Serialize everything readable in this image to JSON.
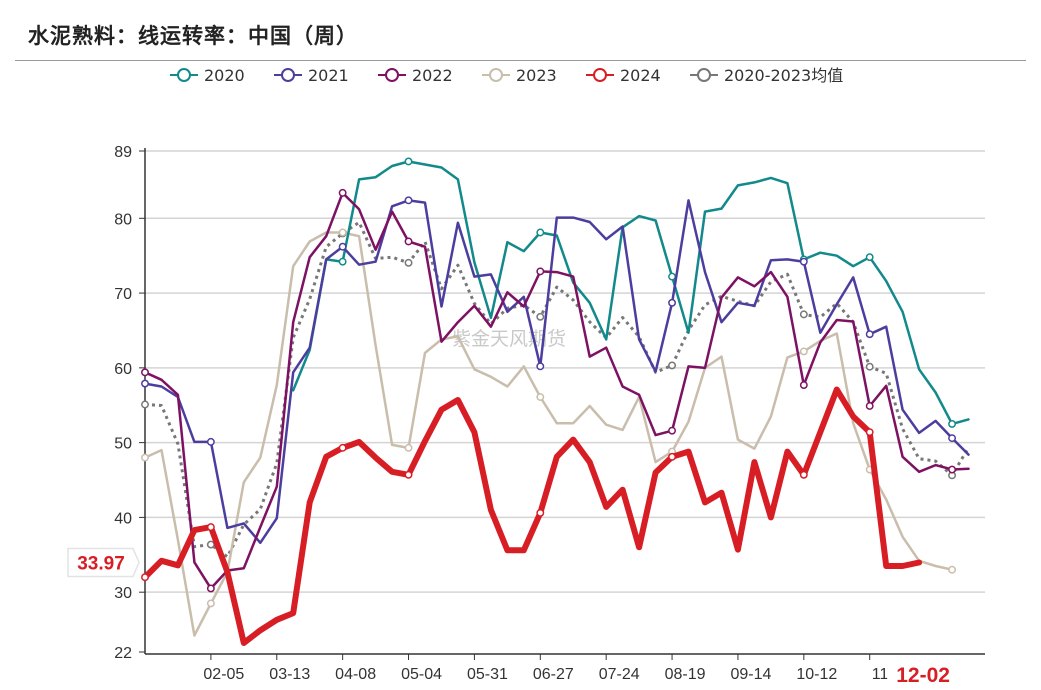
{
  "title": "水泥熟料：线运转率：中国（周）",
  "watermark": "紫金天风期货",
  "chart_data": {
    "type": "line",
    "title": "水泥熟料：线运转率：中国（周）",
    "xlabel": "",
    "ylabel": "",
    "ylim": [
      22,
      89
    ],
    "yticks": [
      "22",
      "30",
      "40",
      "50",
      "60",
      "70",
      "80",
      "89"
    ],
    "x_tick_labels": [
      {
        "week": 4,
        "label": "02-05"
      },
      {
        "week": 8,
        "label": "03-13"
      },
      {
        "week": 12,
        "label": "04-08"
      },
      {
        "week": 16,
        "label": "05-04"
      },
      {
        "week": 20,
        "label": "05-31"
      },
      {
        "week": 24,
        "label": "06-27"
      },
      {
        "week": 28,
        "label": "07-24"
      },
      {
        "week": 32,
        "label": "08-19"
      },
      {
        "week": 36,
        "label": "09-14"
      },
      {
        "week": 40,
        "label": "10-12"
      },
      {
        "week": 44,
        "label": "11-"
      }
    ],
    "highlight_x_label": "12-02",
    "highlight_y_label": "33.97",
    "grid": true,
    "legend_position": "top",
    "series": [
      {
        "name": "2020",
        "color": "#12898b",
        "width": 2.5,
        "start": 9,
        "values": [
          57,
          62.4,
          74.5,
          74.2,
          85.2,
          85.5,
          87,
          87.6,
          87.2,
          86.8,
          85.2,
          74.1,
          66.7,
          76.8,
          75.6,
          78.1,
          77.7,
          71.4,
          68.7,
          63.8,
          78.8,
          80.3,
          79.7,
          72.2,
          64.7,
          80.9,
          81.3,
          84.4,
          84.8,
          85.4,
          84.7,
          74.5,
          75.4,
          75,
          73.6,
          74.8,
          71.6,
          67.5,
          59.8,
          56.7,
          52.5,
          53.1
        ]
      },
      {
        "name": "2021",
        "color": "#4b3e9e",
        "width": 2.5,
        "start": 0,
        "values": [
          57.9,
          57.5,
          56.1,
          50.1,
          50.1,
          38.6,
          39.2,
          36.6,
          39.9,
          59.4,
          62.7,
          74.5,
          76.2,
          73.8,
          74.2,
          81.6,
          82.4,
          82.1,
          68.2,
          79.4,
          72.2,
          72.5,
          67.5,
          69.5,
          60.2,
          80.1,
          80.1,
          79.5,
          77.2,
          78.9,
          63.8,
          59.5,
          68.7,
          82.4,
          72.8,
          66.1,
          68.7,
          68.3,
          74.4,
          74.5,
          74.2,
          64.7,
          68.5,
          72.1,
          64.5,
          65.5,
          54.4,
          51.3,
          52.9,
          50.6,
          48.4
        ]
      },
      {
        "name": "2022",
        "color": "#7d1263",
        "width": 2.5,
        "start": 0,
        "values": [
          59.4,
          58.4,
          56.4,
          34,
          30.5,
          32.9,
          33.2,
          38.7,
          44.1,
          66.1,
          74.8,
          77.6,
          83.4,
          81.2,
          75.8,
          80.9,
          76.9,
          76.2,
          63.5,
          66.1,
          68.3,
          65.5,
          70.1,
          68.2,
          72.9,
          72.8,
          72.2,
          61.5,
          62.7,
          57.5,
          56.4,
          51,
          51.6,
          60.2,
          60,
          69.4,
          72.1,
          70.9,
          72.8,
          69.5,
          57.7,
          63.4,
          66.4,
          66.2,
          54.9,
          57.6,
          48.1,
          46.1,
          47,
          46.4,
          46.5
        ]
      },
      {
        "name": "2023",
        "color": "#c9bdac",
        "width": 2.5,
        "start": 0,
        "values": [
          48,
          49,
          37,
          24.2,
          28.5,
          32.7,
          44.7,
          48,
          57.7,
          73.6,
          76.9,
          78.1,
          78.1,
          77.6,
          63,
          49.7,
          49.3,
          62,
          63.8,
          64.2,
          59.8,
          58.8,
          57.5,
          60.2,
          56.1,
          52.6,
          52.6,
          54.9,
          52.4,
          51.7,
          56.1,
          47.4,
          48.8,
          52.8,
          60,
          61.5,
          50.4,
          49.2,
          53.5,
          61.4,
          62.2,
          63.6,
          64.6,
          52.6,
          46.4,
          42.4,
          37.4,
          34.2,
          33.5,
          33
        ]
      },
      {
        "name": "2024",
        "color": "#d81e25",
        "width": 6,
        "start": 0,
        "values": [
          32,
          34.2,
          33.6,
          38.3,
          38.7,
          32.7,
          23.2,
          24.9,
          26.3,
          27.2,
          42,
          48.1,
          49.3,
          50.1,
          48,
          46.1,
          45.7,
          50.2,
          54.4,
          55.7,
          51.4,
          41,
          35.6,
          35.6,
          40.6,
          48.1,
          50.4,
          47.4,
          41.4,
          43.7,
          36,
          46,
          48.1,
          48.8,
          42,
          43.3,
          35.7,
          47.4,
          40,
          48.8,
          45.7,
          51.4,
          57.1,
          53.5,
          51.4,
          33.5,
          33.5,
          33.97
        ]
      },
      {
        "name": "2020-2023均值",
        "color": "#777777",
        "width": 3,
        "dashed": true,
        "derived": "mean of 2020-2023"
      }
    ]
  }
}
